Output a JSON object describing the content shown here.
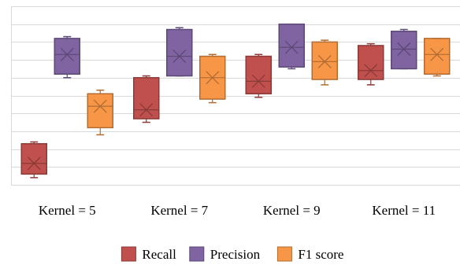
{
  "chart_data": {
    "type": "box",
    "title": "",
    "xlabel": "",
    "ylabel": "",
    "ylim": [
      0,
      10
    ],
    "y_gridlines": 10,
    "y_tick_labels": "none",
    "grid": true,
    "legend_position": "bottom-center",
    "categories": [
      "Kernel = 5",
      "Kernel = 7",
      "Kernel = 9",
      "Kernel = 11"
    ],
    "series": [
      {
        "name": "Recall",
        "color": "#c0504d",
        "boxes": [
          {
            "min": 0.4,
            "q1": 0.6,
            "median": 1.2,
            "mean": 1.2,
            "q3": 2.3,
            "max": 2.4
          },
          {
            "min": 3.5,
            "q1": 3.7,
            "median": 4.2,
            "mean": 4.2,
            "q3": 6.0,
            "max": 6.1
          },
          {
            "min": 4.9,
            "q1": 5.1,
            "median": 5.8,
            "mean": 5.8,
            "q3": 7.2,
            "max": 7.3
          },
          {
            "min": 5.6,
            "q1": 5.9,
            "median": 6.4,
            "mean": 6.4,
            "q3": 7.8,
            "max": 7.9
          }
        ]
      },
      {
        "name": "Precision",
        "color": "#8064a2",
        "boxes": [
          {
            "min": 6.0,
            "q1": 6.2,
            "median": 7.3,
            "mean": 7.3,
            "q3": 8.2,
            "max": 8.3
          },
          {
            "min": 6.1,
            "q1": 6.1,
            "median": 7.2,
            "mean": 7.2,
            "q3": 8.7,
            "max": 8.8
          },
          {
            "min": 6.5,
            "q1": 6.6,
            "median": 7.7,
            "mean": 7.7,
            "q3": 9.0,
            "max": 9.0
          },
          {
            "min": 6.5,
            "q1": 6.5,
            "median": 7.6,
            "mean": 7.6,
            "q3": 8.6,
            "max": 8.7
          }
        ]
      },
      {
        "name": "F1 score",
        "color": "#f79646",
        "boxes": [
          {
            "min": 2.8,
            "q1": 3.2,
            "median": 4.4,
            "mean": 4.4,
            "q3": 5.1,
            "max": 5.3
          },
          {
            "min": 4.6,
            "q1": 4.8,
            "median": 6.0,
            "mean": 6.0,
            "q3": 7.2,
            "max": 7.3
          },
          {
            "min": 5.6,
            "q1": 5.9,
            "median": 6.9,
            "mean": 6.9,
            "q3": 8.0,
            "max": 8.1
          },
          {
            "min": 6.1,
            "q1": 6.2,
            "median": 7.3,
            "mean": 7.3,
            "q3": 8.2,
            "max": 8.2
          }
        ]
      }
    ]
  }
}
